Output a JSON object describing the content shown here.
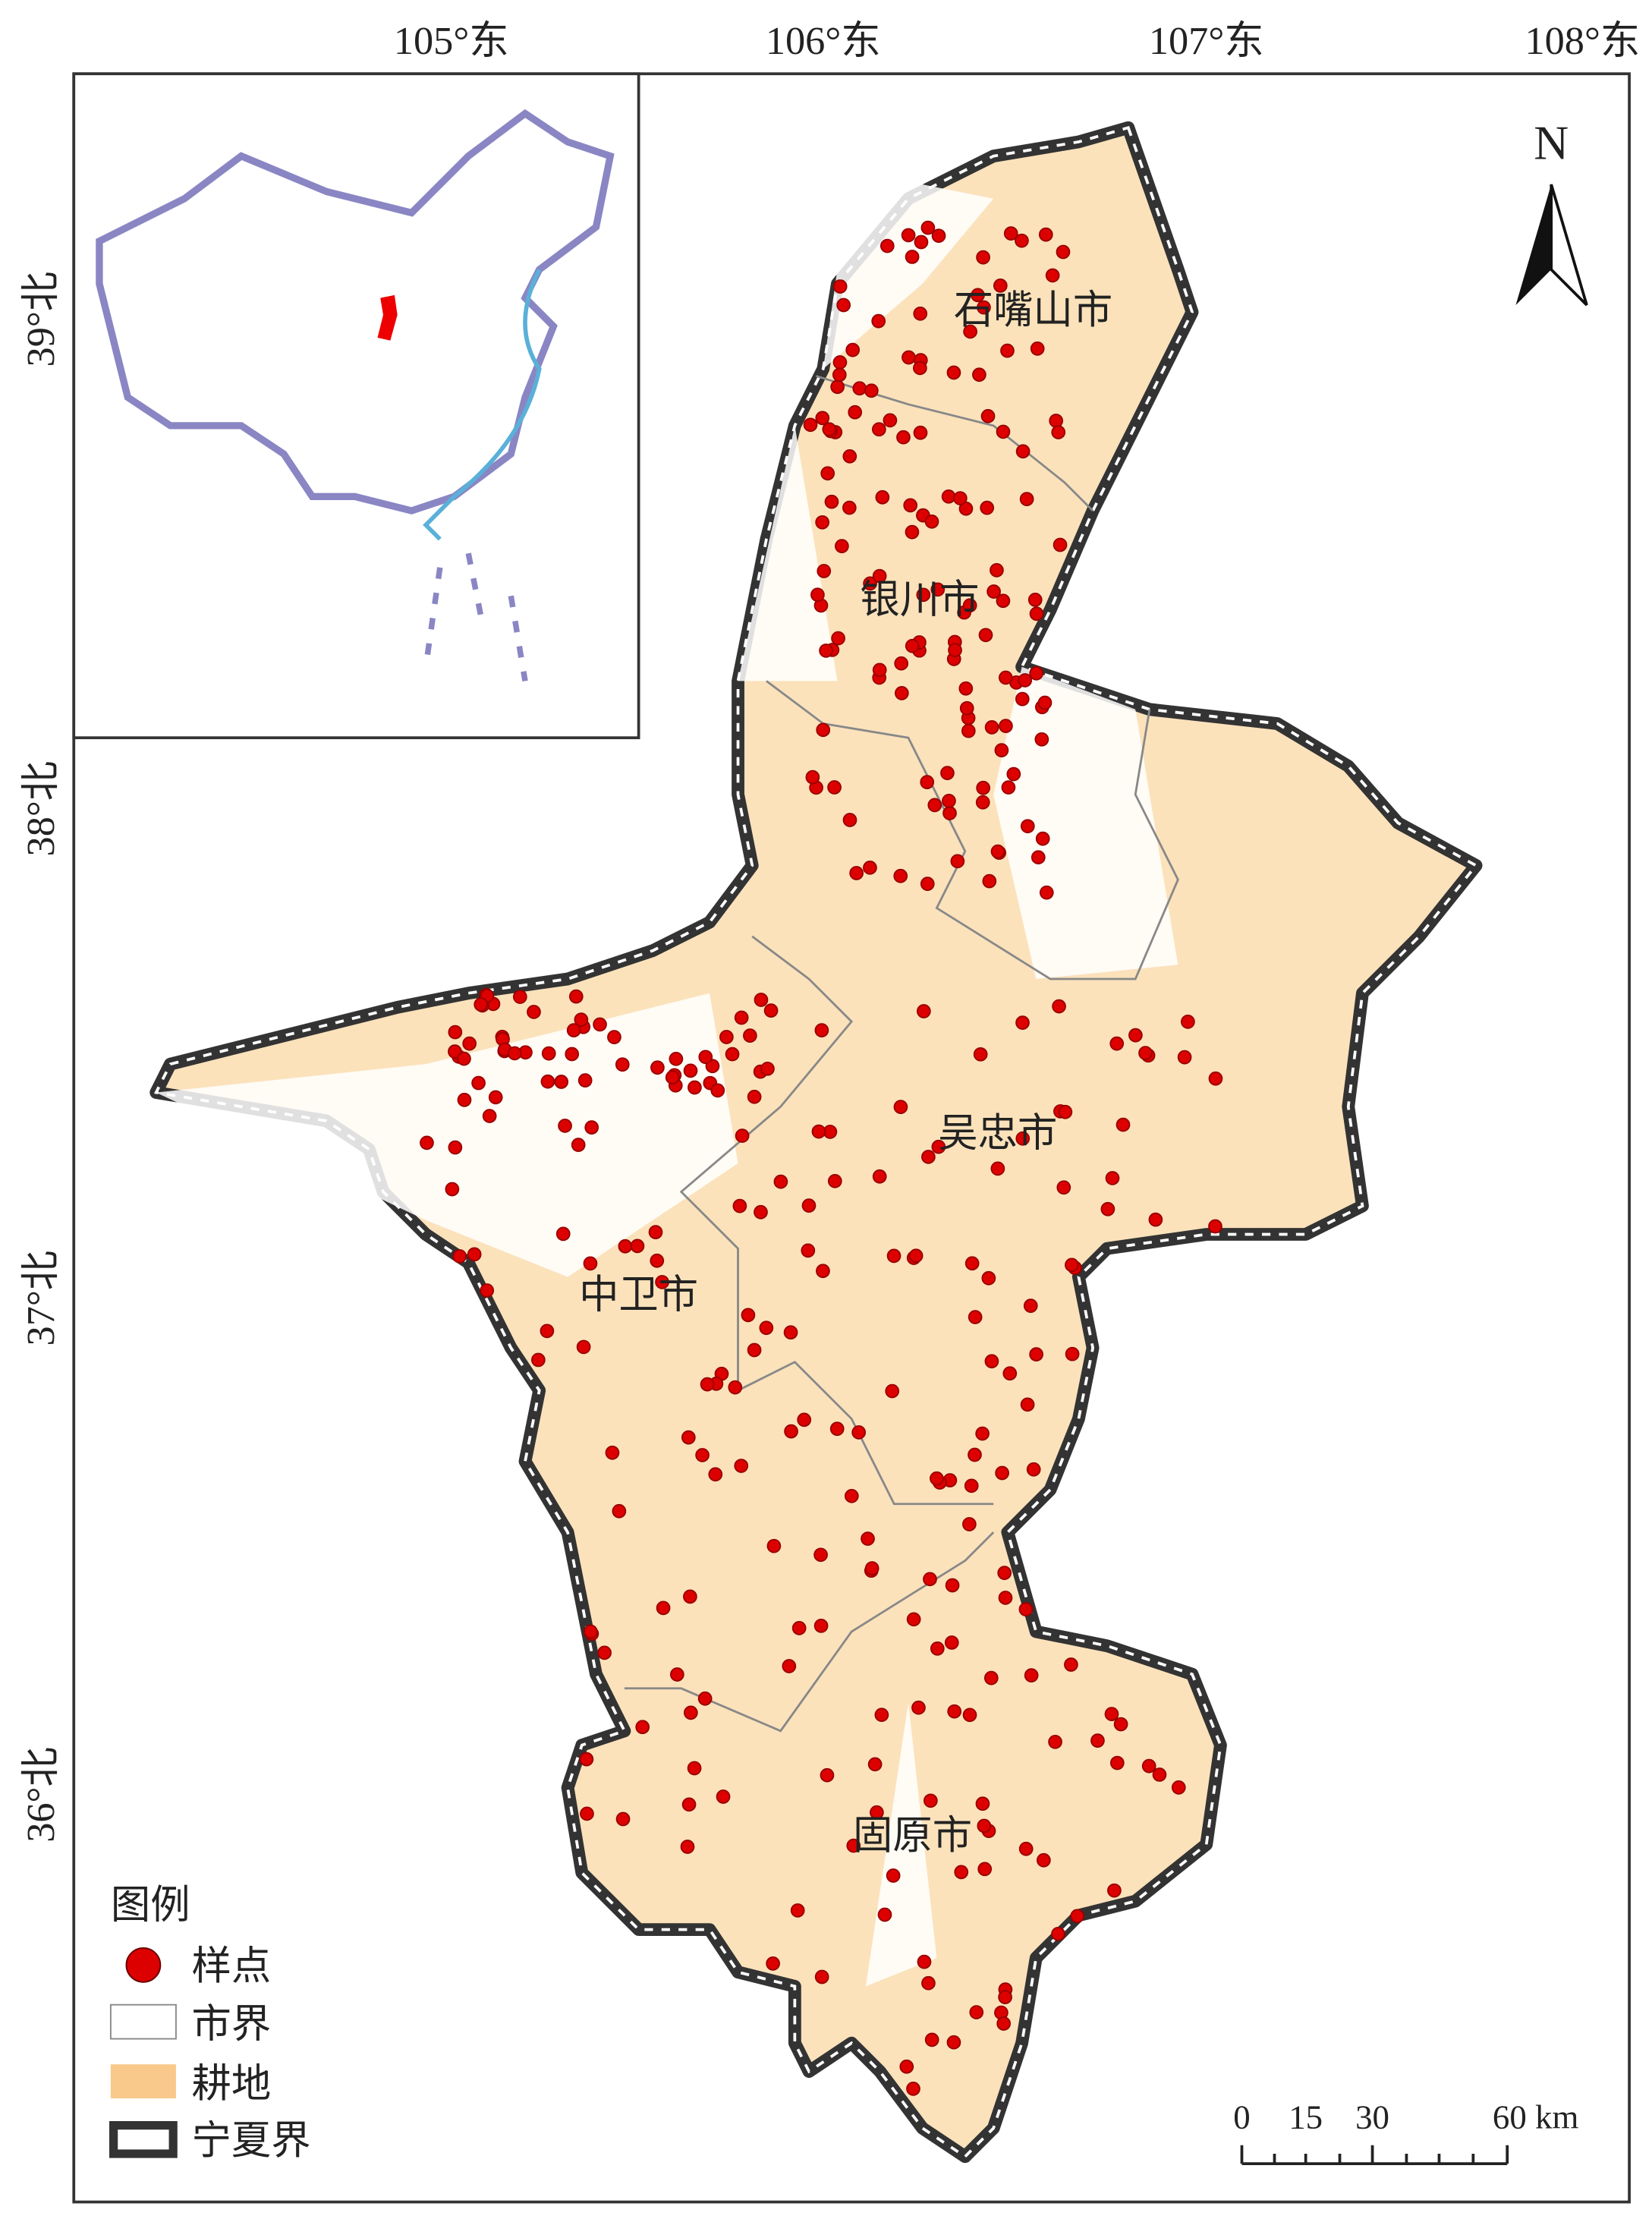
{
  "map": {
    "lon_labels": [
      "105°东",
      "106°东",
      "107°东",
      "108°东"
    ],
    "lat_labels": [
      "39°北",
      "38°北",
      "37°北",
      "36°北"
    ],
    "north": "N",
    "cities": [
      "石嘴山市",
      "银川市",
      "吴忠市",
      "中卫市",
      "固原市"
    ],
    "legend": {
      "title": "图例",
      "items": [
        "样点",
        "市界",
        "耕地",
        "宁夏界"
      ]
    },
    "scale": {
      "ticks": [
        "0",
        "15",
        "30",
        "60 km"
      ]
    }
  }
}
